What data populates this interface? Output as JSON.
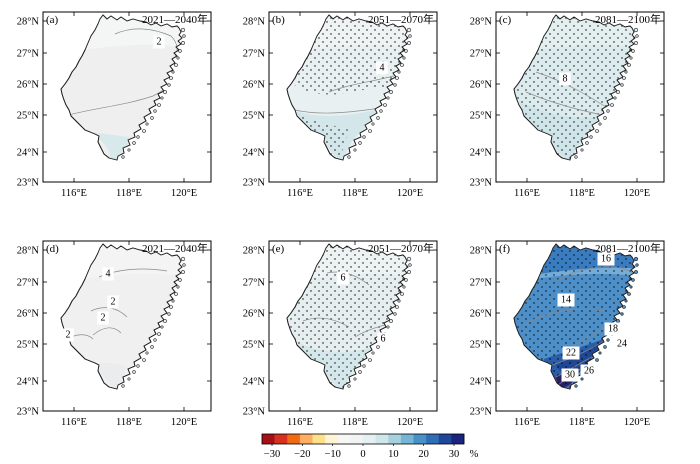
{
  "map": {
    "lon_ticks": [
      "116°E",
      "118°E",
      "120°E"
    ],
    "lat_ticks": [
      "28°N",
      "27°N",
      "26°N",
      "25°N",
      "24°N",
      "23°N"
    ],
    "panels": [
      {
        "label": "(a)",
        "period": "2021—2040年",
        "fill": "#efefef",
        "fill_light": "#f4f5f5",
        "south_tint": "#d8e9ec",
        "stippling": "none",
        "contours": [
          "2"
        ]
      },
      {
        "label": "(b)",
        "period": "2051—2070年",
        "fill": "#e8f0f1",
        "fill_light": "#eff3f4",
        "south_tint": "#d3e7ea",
        "stippling": "partial",
        "contours": [
          "4"
        ]
      },
      {
        "label": "(c)",
        "period": "2081—2100年",
        "fill": "#dcebed",
        "fill_light": "#e4eff0",
        "south_tint": "#d0e5e9",
        "stippling": "full",
        "contours": [
          "8"
        ]
      },
      {
        "label": "(d)",
        "period": "2021—2040年",
        "fill": "#f0f0f0",
        "fill_light": "#f4f4f4",
        "south_tint": "#eaeced",
        "stippling": "none",
        "contours": [
          "4",
          "2",
          "2",
          "2"
        ]
      },
      {
        "label": "(e)",
        "period": "2051—2070年",
        "fill": "#e6eef0",
        "fill_light": "#edf2f3",
        "south_tint": "#d4e7ea",
        "stippling": "full",
        "contours": [
          "6",
          "6"
        ]
      },
      {
        "label": "(f)",
        "period": "2081—2100年",
        "fill": "#4d8fc9",
        "fill_light": "#77acd6",
        "south_tint": "#2a5ea8",
        "stippling": "full",
        "contours": [
          "16",
          "14",
          "18",
          "24",
          "22",
          "26",
          "30"
        ]
      }
    ]
  },
  "colorbar": {
    "labels": [
      "−30",
      "−20",
      "−10",
      "0",
      "10",
      "20",
      "30"
    ],
    "unit": "%",
    "colors": [
      "#a50f15",
      "#d7301f",
      "#f16913",
      "#fdae61",
      "#fee08b",
      "#fff5d6",
      "#f7f7f7",
      "#f2f4f4",
      "#e5f0f2",
      "#cfe6ea",
      "#a6d2df",
      "#74b5d8",
      "#4a90c8",
      "#2f6eb5",
      "#21479a",
      "#1a237e"
    ]
  }
}
